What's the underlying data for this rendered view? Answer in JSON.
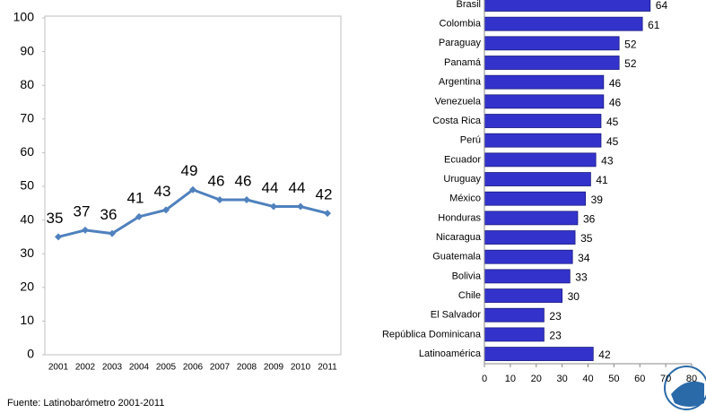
{
  "chart_data": [
    {
      "type": "line",
      "categories": [
        "2001",
        "2002",
        "2003",
        "2004",
        "2005",
        "2006",
        "2007",
        "2008",
        "2009",
        "2010",
        "2011"
      ],
      "values": [
        35,
        37,
        36,
        41,
        43,
        49,
        46,
        46,
        44,
        44,
        42
      ],
      "color": "#4f81bd",
      "ylim": [
        0,
        100
      ],
      "yticks": [
        0,
        10,
        20,
        30,
        40,
        50,
        60,
        70,
        80,
        90,
        100
      ]
    },
    {
      "type": "bar",
      "orientation": "horizontal",
      "categories": [
        "Brasil",
        "Colombia",
        "Paraguay",
        "Panamá",
        "Argentina",
        "Venezuela",
        "Costa Rica",
        "Perú",
        "Ecuador",
        "Uruguay",
        "México",
        "Honduras",
        "Nicaragua",
        "Guatemala",
        "Bolivia",
        "Chile",
        "El Salvador",
        "República Dominicana",
        "Latinoamérica"
      ],
      "values": [
        64,
        61,
        52,
        52,
        46,
        46,
        45,
        45,
        43,
        41,
        39,
        36,
        35,
        34,
        33,
        30,
        23,
        23,
        42
      ],
      "color": "#3333cc",
      "xlim": [
        0,
        80
      ],
      "xticks": [
        0,
        10,
        20,
        30,
        40,
        50,
        60,
        70,
        80
      ]
    }
  ],
  "source": "Fuente: Latinobarómetro 2001-2011"
}
